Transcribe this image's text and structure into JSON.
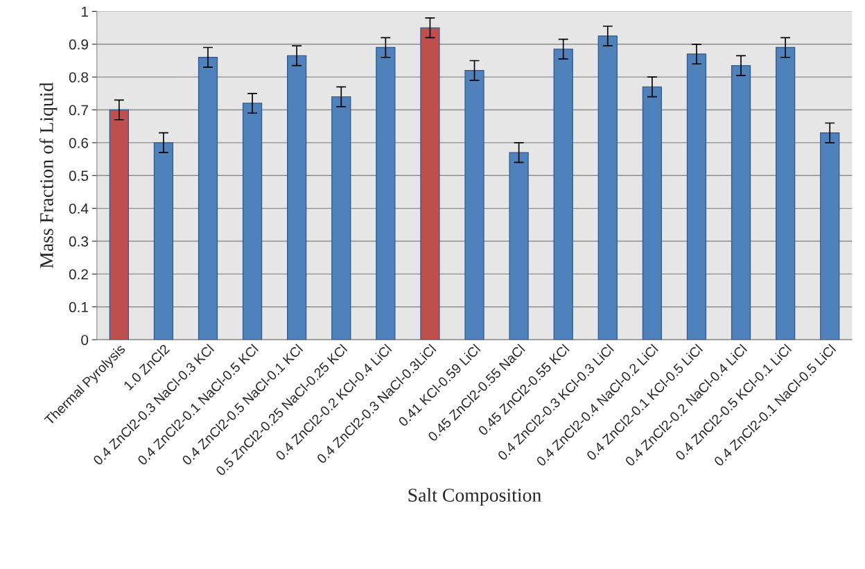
{
  "chart_data": {
    "type": "bar",
    "xlabel": "Salt Composition",
    "ylabel": "Mass Fraction of Liquid",
    "categories": [
      "Thermal Pyrolysis",
      "1.0 ZnCl2",
      "0.4 ZnCl2-0.3 NaCl-0.3 KCl",
      "0.4 ZnCl2-0.1 NaCl-0.5 KCl",
      "0.4 ZnCl2-0.5 NaCl-0.1 KCl",
      "0.5 ZnCl2-0.25 NaCl-0.25 KCl",
      "0.4 ZnCl2-0.2 KCl-0.4 LiCl",
      "0.4 ZnCl2-0.3 NaCl-0.3LiCl",
      "0.41 KCl-0.59 LiCl",
      "0.45 ZnCl2-0.55 NaCl",
      "0.45 ZnCl2-0.55 KCl",
      "0.4 ZnCl2-0.3 KCl-0.3 LiCl",
      "0.4 ZnCl2-0.4 NaCl-0.2 LiCl",
      "0.4 ZnCl2-0.1 KCl-0.5 LiCl",
      "0.4 ZnCl2-0.2 NaCl-0.4 LiCl",
      "0.4 ZnCl2-0.5 KCl-0.1 LiCl",
      "0.4 ZnCl2-0.1 NaCl-0.5 LiCl"
    ],
    "values": [
      0.7,
      0.6,
      0.86,
      0.72,
      0.865,
      0.74,
      0.89,
      0.95,
      0.82,
      0.57,
      0.885,
      0.925,
      0.77,
      0.87,
      0.835,
      0.89,
      0.63
    ],
    "errors": [
      0.03,
      0.03,
      0.03,
      0.03,
      0.03,
      0.03,
      0.03,
      0.03,
      0.03,
      0.03,
      0.03,
      0.03,
      0.03,
      0.03,
      0.03,
      0.03,
      0.03
    ],
    "colors": [
      "#c0504d",
      "#4f81bd",
      "#4f81bd",
      "#4f81bd",
      "#4f81bd",
      "#4f81bd",
      "#4f81bd",
      "#c0504d",
      "#4f81bd",
      "#4f81bd",
      "#4f81bd",
      "#4f81bd",
      "#4f81bd",
      "#4f81bd",
      "#4f81bd",
      "#4f81bd",
      "#4f81bd"
    ],
    "ylim": [
      0,
      1
    ],
    "yticks": [
      0,
      0.1,
      0.2,
      0.3,
      0.4,
      0.5,
      0.6,
      0.7,
      0.8,
      0.9,
      1
    ],
    "grid": "y",
    "legend": false
  }
}
